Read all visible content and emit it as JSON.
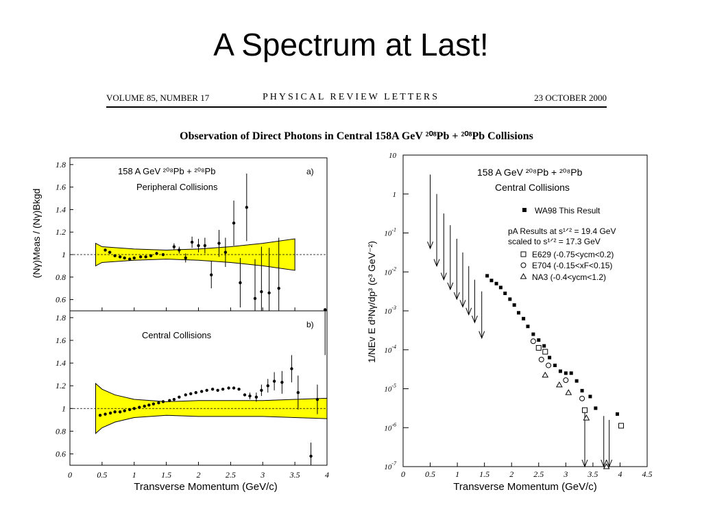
{
  "slide": {
    "title": "A Spectrum at Last!"
  },
  "journal": {
    "volume": "VOLUME 85, NUMBER 17",
    "name": "PHYSICAL REVIEW LETTERS",
    "date": "23 OCTOBER 2000"
  },
  "paper": {
    "title": "Observation of Direct Photons in Central 158A GeV ²⁰⁸Pb + ²⁰⁸Pb Collisions"
  },
  "colors": {
    "band": "#ffff00",
    "ink": "#000000"
  },
  "chart_data": [
    {
      "id": "a",
      "type": "scatter",
      "panel_label": "a)",
      "title": "158 A GeV ²⁰⁸Pb + ²⁰⁸Pb",
      "subtitle": "Peripheral Collisions",
      "ylabel": "(Nγ)Meas / (Nγ)Bkgd",
      "xlim": [
        0,
        4
      ],
      "ylim": [
        0.5,
        1.86
      ],
      "yticks": [
        "0.6",
        "0.8",
        "1",
        "1.2",
        "1.4",
        "1.6",
        "1.8"
      ],
      "reference_line": 1,
      "band": {
        "x": [
          0.4,
          0.5,
          1.0,
          1.5,
          2.0,
          2.5,
          3.0,
          3.5
        ],
        "upper": [
          1.1,
          1.07,
          1.05,
          1.04,
          1.05,
          1.07,
          1.1,
          1.14
        ],
        "lower": [
          0.9,
          0.93,
          0.95,
          0.96,
          0.95,
          0.93,
          0.9,
          0.86
        ]
      },
      "points": [
        {
          "x": 0.55,
          "y": 1.04
        },
        {
          "x": 0.62,
          "y": 1.02
        },
        {
          "x": 0.7,
          "y": 0.99
        },
        {
          "x": 0.78,
          "y": 0.98
        },
        {
          "x": 0.85,
          "y": 0.97
        },
        {
          "x": 0.93,
          "y": 0.96
        },
        {
          "x": 1.0,
          "y": 0.97
        },
        {
          "x": 1.1,
          "y": 0.98
        },
        {
          "x": 1.18,
          "y": 0.98
        },
        {
          "x": 1.26,
          "y": 0.99
        },
        {
          "x": 1.35,
          "y": 1.01
        },
        {
          "x": 1.45,
          "y": 1.0
        },
        {
          "x": 1.62,
          "y": 1.07,
          "err": 0.03
        },
        {
          "x": 1.7,
          "y": 1.04,
          "err": 0.03
        },
        {
          "x": 1.8,
          "y": 0.97,
          "err": 0.04
        },
        {
          "x": 1.9,
          "y": 1.11,
          "err": 0.05
        },
        {
          "x": 2.0,
          "y": 1.08,
          "err": 0.06
        },
        {
          "x": 2.1,
          "y": 1.08,
          "err": 0.07
        },
        {
          "x": 2.2,
          "y": 0.82,
          "err": 0.12
        },
        {
          "x": 2.32,
          "y": 1.1,
          "err": 0.12
        },
        {
          "x": 2.42,
          "y": 1.02,
          "err": 0.13
        },
        {
          "x": 2.55,
          "y": 1.28,
          "err": 0.2
        },
        {
          "x": 2.65,
          "y": 0.75,
          "err": 0.22
        },
        {
          "x": 2.75,
          "y": 1.42,
          "err": 0.3
        },
        {
          "x": 2.88,
          "y": 0.61,
          "err": 0.35
        },
        {
          "x": 2.98,
          "y": 0.67,
          "err": 0.4
        },
        {
          "x": 3.1,
          "y": 0.66,
          "err": 0.4
        },
        {
          "x": 3.25,
          "y": 0.7,
          "err": 0.45
        }
      ]
    },
    {
      "id": "b",
      "type": "scatter",
      "panel_label": "b)",
      "subtitle": "Central Collisions",
      "xlabel": "Transverse Momentum (GeV/c)",
      "xlim": [
        0,
        4
      ],
      "ylim": [
        0.5,
        1.86
      ],
      "xticks": [
        "0",
        "0.5",
        "1",
        "1.5",
        "2",
        "2.5",
        "3",
        "3.5",
        "4"
      ],
      "yticks": [
        "0.6",
        "0.8",
        "1",
        "1.2",
        "1.4",
        "1.6",
        "1.8"
      ],
      "reference_line": 1,
      "band": {
        "x": [
          0.4,
          0.5,
          0.7,
          1.0,
          1.5,
          2.0,
          2.5,
          3.0,
          3.5,
          4.0
        ],
        "upper": [
          1.22,
          1.17,
          1.12,
          1.08,
          1.06,
          1.07,
          1.07,
          1.07,
          1.08,
          1.09
        ],
        "lower": [
          0.78,
          0.83,
          0.88,
          0.92,
          0.94,
          0.93,
          0.93,
          0.93,
          0.92,
          0.91
        ]
      },
      "points": [
        {
          "x": 0.47,
          "y": 0.94
        },
        {
          "x": 0.55,
          "y": 0.95
        },
        {
          "x": 0.63,
          "y": 0.96
        },
        {
          "x": 0.7,
          "y": 0.97
        },
        {
          "x": 0.78,
          "y": 0.97
        },
        {
          "x": 0.85,
          "y": 0.98
        },
        {
          "x": 0.93,
          "y": 0.99
        },
        {
          "x": 1.0,
          "y": 1.0
        },
        {
          "x": 1.08,
          "y": 1.01
        },
        {
          "x": 1.16,
          "y": 1.02
        },
        {
          "x": 1.23,
          "y": 1.03
        },
        {
          "x": 1.3,
          "y": 1.04
        },
        {
          "x": 1.38,
          "y": 1.05
        },
        {
          "x": 1.45,
          "y": 1.06
        },
        {
          "x": 1.55,
          "y": 1.07
        },
        {
          "x": 1.62,
          "y": 1.08
        },
        {
          "x": 1.7,
          "y": 1.1
        },
        {
          "x": 1.8,
          "y": 1.12
        },
        {
          "x": 1.88,
          "y": 1.13
        },
        {
          "x": 1.96,
          "y": 1.14
        },
        {
          "x": 2.05,
          "y": 1.15
        },
        {
          "x": 2.13,
          "y": 1.16
        },
        {
          "x": 2.22,
          "y": 1.17
        },
        {
          "x": 2.3,
          "y": 1.16
        },
        {
          "x": 2.38,
          "y": 1.17
        },
        {
          "x": 2.47,
          "y": 1.18
        },
        {
          "x": 2.55,
          "y": 1.18
        },
        {
          "x": 2.63,
          "y": 1.17
        },
        {
          "x": 2.72,
          "y": 1.12
        },
        {
          "x": 2.8,
          "y": 1.11,
          "err": 0.03
        },
        {
          "x": 2.9,
          "y": 1.1,
          "err": 0.04
        },
        {
          "x": 2.98,
          "y": 1.16,
          "err": 0.05
        },
        {
          "x": 3.08,
          "y": 1.2,
          "err": 0.06
        },
        {
          "x": 3.18,
          "y": 1.24,
          "err": 0.08
        },
        {
          "x": 3.3,
          "y": 1.23,
          "err": 0.1
        },
        {
          "x": 3.45,
          "y": 1.35,
          "err": 0.12
        },
        {
          "x": 3.55,
          "y": 1.14,
          "err": 0.15
        },
        {
          "x": 3.75,
          "y": 0.58,
          "err": 0.12
        },
        {
          "x": 3.85,
          "y": 1.08,
          "err": 0.13
        },
        {
          "x": 3.97,
          "y": 1.87,
          "err": 0.4
        }
      ]
    },
    {
      "id": "c",
      "type": "scatter",
      "title": "158 A GeV ²⁰⁸Pb + ²⁰⁸Pb",
      "subtitle": "Central Collisions",
      "xlabel": "Transverse Momentum (GeV/c)",
      "ylabel": "1/NEv E d³Nγ/dp³  (c³ GeV⁻²)",
      "xlim": [
        0,
        4.5
      ],
      "ylim_log10": [
        -7,
        1
      ],
      "log_y": true,
      "xticks": [
        "0",
        "0.5",
        "1",
        "1.5",
        "2",
        "2.5",
        "3",
        "3.5",
        "4",
        "4.5"
      ],
      "yticks": [
        {
          "base": "10",
          "exp": ""
        },
        {
          "base": "1",
          "exp": ""
        },
        {
          "base": "10",
          "exp": "-1"
        },
        {
          "base": "10",
          "exp": "-2"
        },
        {
          "base": "10",
          "exp": "-3"
        },
        {
          "base": "10",
          "exp": "-4"
        },
        {
          "base": "10",
          "exp": "-5"
        },
        {
          "base": "10",
          "exp": "-6"
        },
        {
          "base": "10",
          "exp": "-7"
        }
      ],
      "legend": {
        "wa98": "WA98 This Result",
        "pa_line1": "pA Results at s¹ᐟ² = 19.4 GeV",
        "pa_line2": "scaled to  s¹ᐟ² = 17.3 GeV",
        "e629": "E629  (-0.75<ycm<0.2)",
        "e704": "E704  (-0.15<xF<0.15)",
        "na3": "NA3  (-0.4<ycm<1.2)"
      },
      "upper_limits": [
        {
          "x": 0.5,
          "ytop": 0.5
        },
        {
          "x": 0.62,
          "ytop": 0.0
        },
        {
          "x": 0.75,
          "ytop": -0.5
        },
        {
          "x": 0.87,
          "ytop": -0.8
        },
        {
          "x": 0.99,
          "ytop": -1.15
        },
        {
          "x": 1.1,
          "ytop": -1.5
        },
        {
          "x": 1.21,
          "ytop": -1.85
        },
        {
          "x": 1.32,
          "ytop": -2.2
        },
        {
          "x": 1.45,
          "ytop": -2.5
        },
        {
          "x": 3.35,
          "ytop": -5.5
        },
        {
          "x": 3.7,
          "ytop": -5.7
        },
        {
          "x": 3.8,
          "ytop": -5.8
        }
      ],
      "upper_limit_tips": [
        -1.4,
        -1.85,
        -2.2,
        -2.45,
        -2.7,
        -2.9,
        -3.1,
        -3.3,
        -3.7,
        -7.0,
        -7.0,
        -7.0
      ],
      "wa98": [
        {
          "x": 1.55,
          "y": -2.1
        },
        {
          "x": 1.63,
          "y": -2.22
        },
        {
          "x": 1.72,
          "y": -2.3
        },
        {
          "x": 1.8,
          "y": -2.4
        },
        {
          "x": 1.88,
          "y": -2.55
        },
        {
          "x": 1.97,
          "y": -2.7
        },
        {
          "x": 2.05,
          "y": -2.85
        },
        {
          "x": 2.13,
          "y": -3.05
        },
        {
          "x": 2.22,
          "y": -3.2
        },
        {
          "x": 2.3,
          "y": -3.4
        },
        {
          "x": 2.4,
          "y": -3.6
        },
        {
          "x": 2.5,
          "y": -3.75
        },
        {
          "x": 2.6,
          "y": -3.9
        },
        {
          "x": 2.7,
          "y": -4.2
        },
        {
          "x": 2.8,
          "y": -4.4
        },
        {
          "x": 2.9,
          "y": -4.55
        },
        {
          "x": 3.0,
          "y": -4.6
        },
        {
          "x": 3.1,
          "y": -4.6
        },
        {
          "x": 3.2,
          "y": -4.8
        },
        {
          "x": 3.3,
          "y": -5.05
        },
        {
          "x": 3.45,
          "y": -5.2
        },
        {
          "x": 3.55,
          "y": -5.5
        },
        {
          "x": 3.95,
          "y": -5.65
        }
      ],
      "e629": [
        {
          "x": 2.5,
          "y": -3.95
        },
        {
          "x": 2.62,
          "y": -4.05
        },
        {
          "x": 3.35,
          "y": -5.55
        },
        {
          "x": 4.02,
          "y": -5.95
        }
      ],
      "e704": [
        {
          "x": 2.4,
          "y": -3.78
        },
        {
          "x": 2.55,
          "y": -4.25
        },
        {
          "x": 2.68,
          "y": -4.4
        },
        {
          "x": 3.0,
          "y": -4.78
        },
        {
          "x": 3.3,
          "y": -5.25
        }
      ],
      "na3": [
        {
          "x": 2.62,
          "y": -4.65
        },
        {
          "x": 2.88,
          "y": -4.9
        },
        {
          "x": 3.05,
          "y": -5.1
        },
        {
          "x": 3.38,
          "y": -5.75
        },
        {
          "x": 3.75,
          "y": -7.0
        }
      ]
    }
  ]
}
